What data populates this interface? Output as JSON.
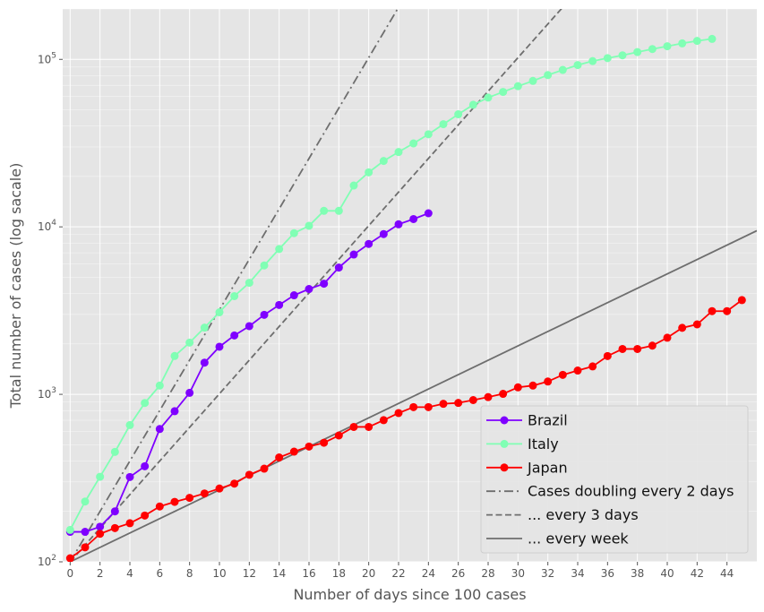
{
  "chart_data": {
    "type": "line",
    "title": "",
    "xlabel": "Number of days since 100 cases",
    "ylabel": "Total number of cases  (log sacale)",
    "x_scale": "linear",
    "y_scale": "log",
    "xlim": [
      -0.5,
      46
    ],
    "ylim": [
      100,
      200000
    ],
    "x_ticks": [
      0,
      2,
      4,
      6,
      8,
      10,
      12,
      14,
      16,
      18,
      20,
      22,
      24,
      26,
      28,
      30,
      32,
      34,
      36,
      38,
      40,
      42,
      44
    ],
    "y_ticks": [
      {
        "value": 100,
        "base": "10",
        "exp": "2"
      },
      {
        "value": 1000,
        "base": "10",
        "exp": "3"
      },
      {
        "value": 10000,
        "base": "10",
        "exp": "4"
      },
      {
        "value": 100000,
        "base": "10",
        "exp": "5"
      }
    ],
    "grid": true,
    "legend_position": "lower-right",
    "series": [
      {
        "name": "Brazil",
        "color": "#7f00ff",
        "style": "solid",
        "marker": "circle",
        "x": [
          0,
          1,
          2,
          3,
          4,
          5,
          6,
          7,
          8,
          9,
          10,
          11,
          12,
          13,
          14,
          15,
          16,
          17,
          18,
          19,
          20,
          21,
          22,
          23,
          24
        ],
        "y": [
          151,
          151,
          162,
          200,
          321,
          372,
          621,
          793,
          1021,
          1546,
          1924,
          2247,
          2554,
          2985,
          3417,
          3904,
          4256,
          4579,
          5717,
          6836,
          7910,
          9056,
          10360,
          11130,
          12056
        ]
      },
      {
        "name": "Italy",
        "color": "#80ffb4",
        "style": "solid",
        "marker": "circle",
        "x": [
          0,
          1,
          2,
          3,
          4,
          5,
          6,
          7,
          8,
          9,
          10,
          11,
          12,
          13,
          14,
          15,
          16,
          17,
          18,
          19,
          20,
          21,
          22,
          23,
          24,
          25,
          26,
          27,
          28,
          29,
          30,
          31,
          32,
          33,
          34,
          35,
          36,
          37,
          38,
          39,
          40,
          41,
          42,
          43
        ],
        "y": [
          155,
          229,
          322,
          453,
          655,
          888,
          1128,
          1694,
          2036,
          2502,
          3089,
          3858,
          4636,
          5883,
          7375,
          9172,
          10149,
          12462,
          12462,
          17660,
          21157,
          24747,
          27980,
          31506,
          35713,
          41035,
          47021,
          53578,
          59138,
          63927,
          69176,
          74386,
          80589,
          86498,
          92472,
          97689,
          101739,
          105792,
          110574,
          115242,
          119827,
          124632,
          128948,
          132547
        ]
      },
      {
        "name": "Japan",
        "color": "#ff0000",
        "style": "solid",
        "marker": "circle",
        "x": [
          0,
          1,
          2,
          3,
          4,
          5,
          6,
          7,
          8,
          9,
          10,
          11,
          12,
          13,
          14,
          15,
          16,
          17,
          18,
          19,
          20,
          21,
          22,
          23,
          24,
          25,
          26,
          27,
          28,
          29,
          30,
          31,
          32,
          33,
          34,
          35,
          36,
          37,
          38,
          39,
          40,
          41,
          42,
          43,
          44,
          45
        ],
        "y": [
          105,
          122,
          147,
          159,
          170,
          189,
          214,
          228,
          241,
          256,
          274,
          293,
          331,
          360,
          420,
          455,
          488,
          514,
          568,
          639,
          639,
          701,
          773,
          839,
          839,
          878,
          889,
          924,
          963,
          1007,
          1101,
          1128,
          1193,
          1307,
          1387,
          1468,
          1693,
          1866,
          1866,
          1953,
          2178,
          2495,
          2617,
          3139,
          3139,
          3654
        ]
      },
      {
        "name": "Cases doubling every 2 days",
        "color": "#6e6e6e",
        "style": "dashdot",
        "marker": "none",
        "x": [
          0,
          22
        ],
        "y": [
          100,
          204800
        ]
      },
      {
        "name": "... every 3 days",
        "color": "#6e6e6e",
        "style": "dashed",
        "marker": "none",
        "x": [
          0,
          33
        ],
        "y": [
          100,
          204800
        ]
      },
      {
        "name": "... every week",
        "color": "#6e6e6e",
        "style": "solid",
        "marker": "none",
        "x": [
          0,
          46
        ],
        "y": [
          100,
          9487
        ]
      }
    ]
  }
}
